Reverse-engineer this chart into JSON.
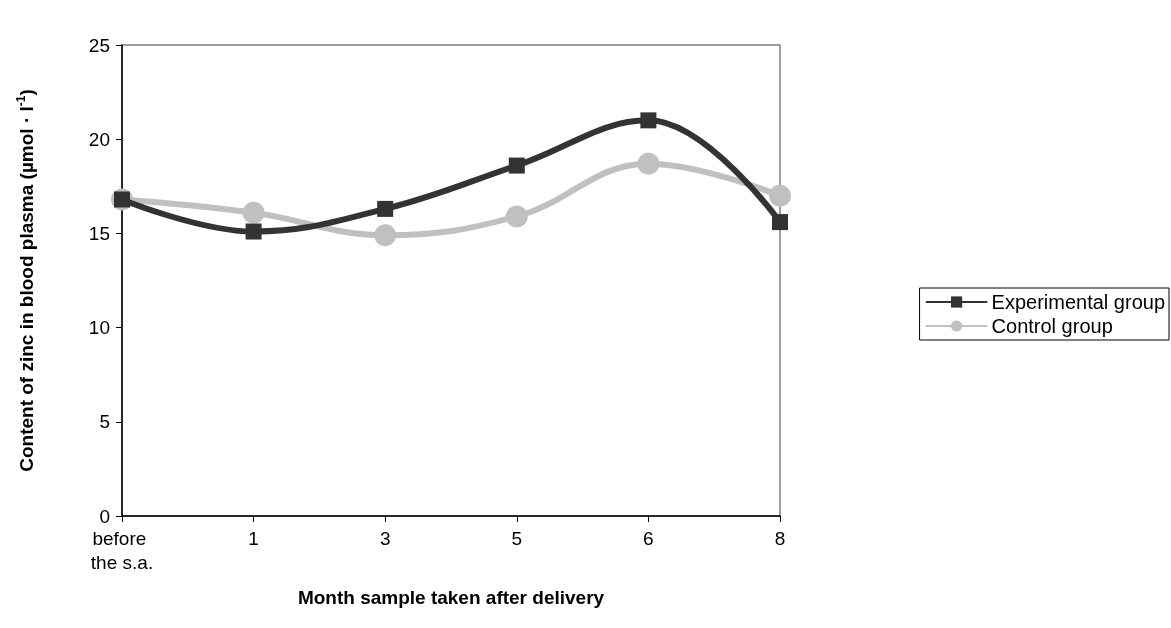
{
  "chart_data": {
    "type": "line",
    "xlabel": "Month sample taken after delivery",
    "ylabel": "Content of zinc in blood plasma (µmol · l$^{-1}$)",
    "categories": [
      "before the s.a.",
      "1",
      "3",
      "5",
      "6",
      "8"
    ],
    "series": [
      {
        "name": "Experimental group",
        "color": "#333333",
        "marker": "square",
        "values": [
          16.8,
          15.1,
          16.3,
          18.6,
          21.0,
          15.6
        ]
      },
      {
        "name": "Control group",
        "color": "#c0c0c0",
        "marker": "circle",
        "values": [
          16.8,
          16.1,
          14.9,
          15.9,
          18.7,
          17.0
        ]
      }
    ],
    "ylim": [
      0,
      25
    ],
    "yticks": [
      0,
      5,
      10,
      15,
      20,
      25
    ],
    "grid": false,
    "legend": "right",
    "line_style": "solid"
  }
}
